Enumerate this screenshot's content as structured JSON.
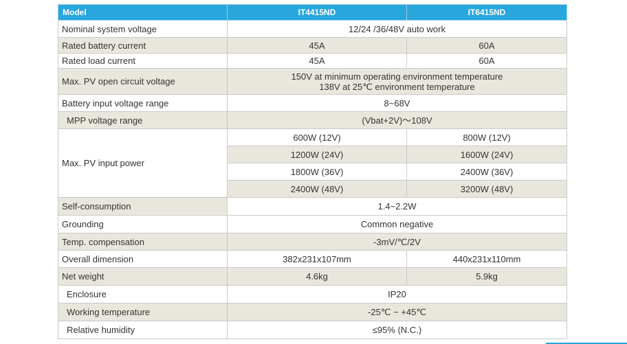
{
  "header": {
    "label": "Model",
    "models": [
      "IT4415ND",
      "IT6415ND"
    ]
  },
  "rows": {
    "nominal_voltage": {
      "label": "Nominal system voltage",
      "value": "12/24 /36/48V auto work"
    },
    "battery_current": {
      "label": "Rated  battery current",
      "values": [
        "45A",
        "60A"
      ]
    },
    "load_current": {
      "label": "Rated  load current",
      "values": [
        "45A",
        "60A"
      ]
    },
    "pv_open_circuit": {
      "label": "Max. PV open circuit voltage",
      "lines": [
        "150V at minimum operating environment temperature",
        "138V at 25℃ environment temperature"
      ]
    },
    "battery_input_range": {
      "label": "Battery input voltage range",
      "value": "8~68V"
    },
    "mpp_range": {
      "label": "MPP voltage range",
      "value": "(Vbat+2V)～108V"
    },
    "pv_input_power": {
      "label": "Max. PV input power",
      "a": [
        "600W  (12V)",
        "1200W  (24V)",
        "1800W  (36V)",
        "2400W  (48V)"
      ],
      "b": [
        "800W  (12V)",
        "1600W  (24V)",
        "2400W  (36V)",
        "3200W  (48V)"
      ]
    },
    "self_consumption": {
      "label": "Self-consumption",
      "value": "1.4~2.2W"
    },
    "grounding": {
      "label": "Grounding",
      "value": "Common negative"
    },
    "temp_comp": {
      "label": "Temp. compensation",
      "value": "-3mV/℃/2V"
    },
    "dimension": {
      "label": "Overall dimension",
      "values": [
        "382x231x107mm",
        "440x231x110mm"
      ]
    },
    "net_weight": {
      "label": "Net weight",
      "values": [
        "4.6kg",
        "5.9kg"
      ]
    },
    "enclosure": {
      "label": "Enclosure",
      "value": "IP20"
    },
    "working_temp": {
      "label": "Working temperature",
      "value": "-25℃ ~ +45℃"
    },
    "humidity": {
      "label": "Relative humidity",
      "value": "≤95% (N.C.)"
    }
  },
  "colors": {
    "header": "#29a6db",
    "shade": "#e9e7dd",
    "border": "#c8c8c8"
  }
}
